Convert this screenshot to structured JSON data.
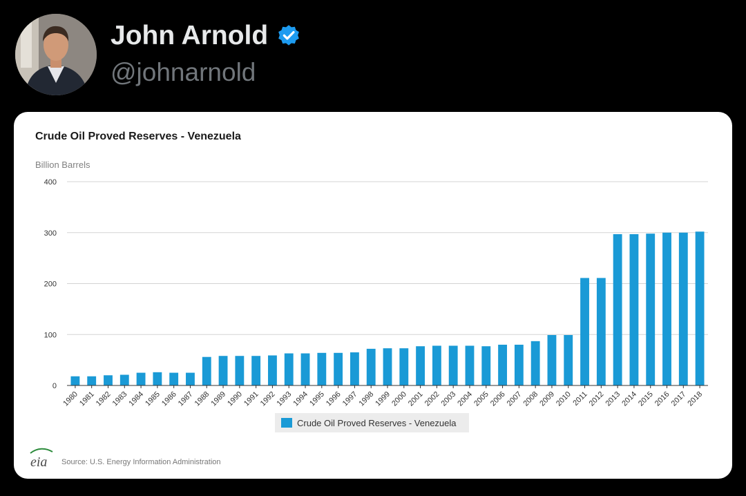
{
  "tweet": {
    "display_name": "John Arnold",
    "handle": "@johnarnold",
    "verified": true,
    "avatar_icon": "profile-photo",
    "verified_icon": "verified-badge-icon",
    "verified_color": "#1d9bf0"
  },
  "card": {
    "source": "Source: U.S. Energy Information Administration",
    "logo_text": "eia"
  },
  "chart_data": {
    "type": "bar",
    "title": "Crude Oil Proved Reserves - Venezuela",
    "ylabel": "Billion Barrels",
    "xlabel": "",
    "ylim": [
      0,
      400
    ],
    "yticks": [
      0,
      100,
      200,
      300,
      400
    ],
    "grid": true,
    "legend_position": "bottom-center",
    "bar_color": "#1a9ad6",
    "categories": [
      "1980",
      "1981",
      "1982",
      "1983",
      "1984",
      "1985",
      "1986",
      "1987",
      "1988",
      "1989",
      "1990",
      "1991",
      "1992",
      "1993",
      "1994",
      "1995",
      "1996",
      "1997",
      "1998",
      "1999",
      "2000",
      "2001",
      "2002",
      "2003",
      "2004",
      "2005",
      "2006",
      "2007",
      "2008",
      "2009",
      "2010",
      "2011",
      "2012",
      "2013",
      "2014",
      "2015",
      "2016",
      "2017",
      "2018"
    ],
    "series": [
      {
        "name": "Crude Oil Proved Reserves - Venezuela",
        "values": [
          18,
          18,
          20,
          21,
          25,
          26,
          25,
          25,
          56,
          58,
          58,
          58,
          59,
          63,
          63,
          64,
          64,
          65,
          72,
          73,
          73,
          77,
          78,
          78,
          78,
          77,
          80,
          80,
          87,
          99,
          99,
          211,
          211,
          297,
          297,
          298,
          300,
          300,
          302
        ]
      }
    ]
  }
}
